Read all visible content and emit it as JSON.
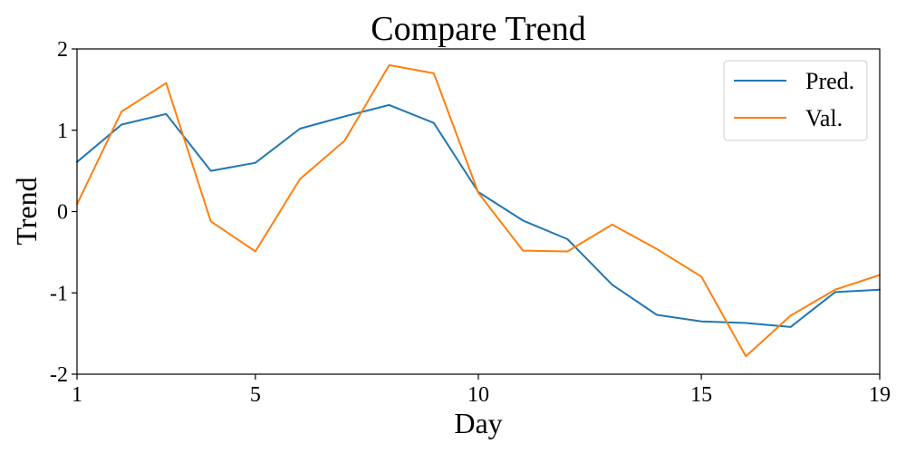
{
  "chart_data": {
    "type": "line",
    "title": "Compare Trend",
    "xlabel": "Day",
    "ylabel": "Trend",
    "xlim": [
      1,
      19
    ],
    "ylim": [
      -2,
      2
    ],
    "x_ticks": [
      1,
      5,
      10,
      15,
      19
    ],
    "y_ticks": [
      -2,
      -1,
      0,
      1,
      2
    ],
    "grid": false,
    "legend_position": "top-right",
    "x": [
      1,
      2,
      3,
      4,
      5,
      6,
      7,
      8,
      9,
      10,
      11,
      12,
      13,
      14,
      15,
      16,
      17,
      18,
      19
    ],
    "series": [
      {
        "name": "Pred.",
        "color": "#1f77b4",
        "values": [
          0.61,
          1.07,
          1.2,
          0.5,
          0.6,
          1.02,
          1.17,
          1.31,
          1.09,
          0.24,
          -0.11,
          -0.34,
          -0.9,
          -1.27,
          -1.35,
          -1.37,
          -1.42,
          -0.99,
          -0.96
        ]
      },
      {
        "name": "Val.",
        "color": "#ff7f0e",
        "values": [
          0.09,
          1.23,
          1.58,
          -0.12,
          -0.49,
          0.4,
          0.87,
          1.8,
          1.7,
          0.23,
          -0.48,
          -0.49,
          -0.16,
          -0.46,
          -0.8,
          -1.78,
          -1.28,
          -0.96,
          -0.78
        ]
      }
    ]
  }
}
